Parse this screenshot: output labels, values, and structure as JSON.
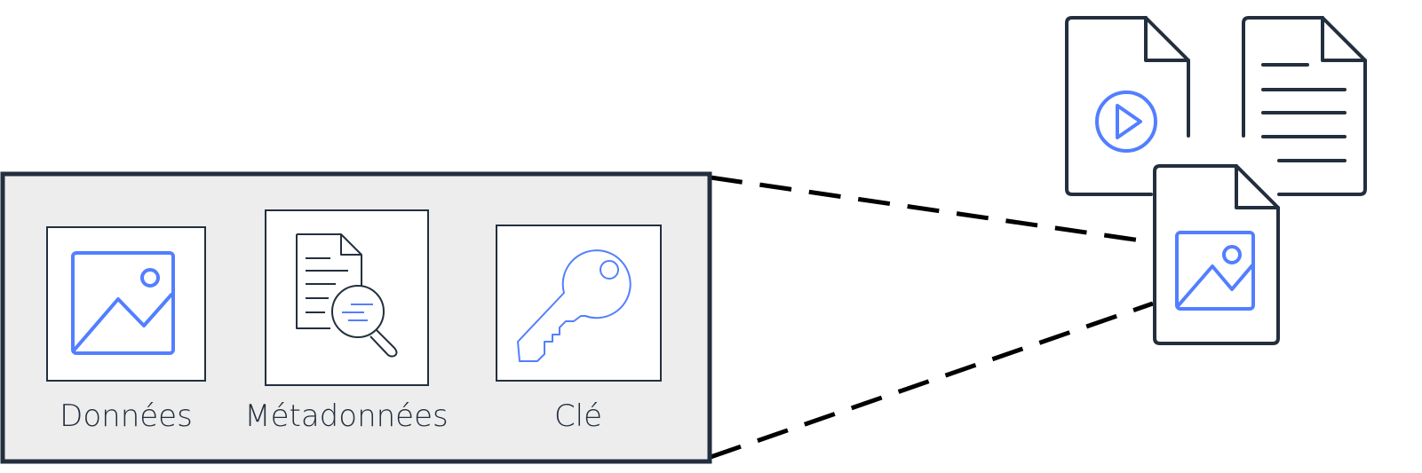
{
  "object": {
    "components": [
      {
        "label": "Données",
        "icon": "image-icon"
      },
      {
        "label": "Métadonnées",
        "icon": "document-search-icon"
      },
      {
        "label": "Clé",
        "icon": "key-icon"
      }
    ]
  },
  "storage": {
    "files": [
      {
        "icon": "video-file-icon"
      },
      {
        "icon": "text-file-icon"
      },
      {
        "icon": "image-file-icon"
      }
    ]
  },
  "colors": {
    "dark": "#232f3e",
    "accent": "#527fff",
    "panel": "#ededed"
  }
}
